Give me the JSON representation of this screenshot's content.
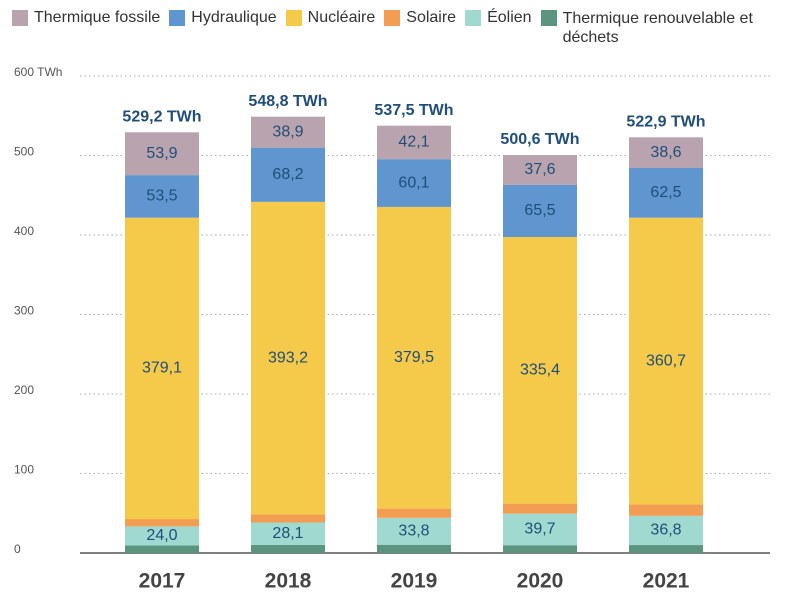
{
  "chart_data": {
    "type": "stacked-bar",
    "categories": [
      "2017",
      "2018",
      "2019",
      "2020",
      "2021"
    ],
    "series": [
      {
        "name": "Thermique renouvelable et déchets",
        "color": "#5b9580",
        "values": [
          9.5,
          10.2,
          10.4,
          9.8,
          10.0
        ]
      },
      {
        "name": "Éolien",
        "color": "#9fd9cf",
        "values": [
          24.0,
          28.1,
          33.8,
          39.7,
          36.8
        ],
        "value_labels": [
          "24,0",
          "28,1",
          "33,8",
          "39,7",
          "36,8"
        ]
      },
      {
        "name": "Solaire",
        "color": "#f29d52",
        "values": [
          9.2,
          10.2,
          11.6,
          12.6,
          14.3
        ]
      },
      {
        "name": "Nucléaire",
        "color": "#f5c94a",
        "values": [
          379.1,
          393.2,
          379.5,
          335.4,
          360.7
        ],
        "value_labels": [
          "379,1",
          "393,2",
          "379,5",
          "335,4",
          "360,7"
        ]
      },
      {
        "name": "Hydraulique",
        "color": "#5f96cf",
        "values": [
          53.5,
          68.2,
          60.1,
          65.5,
          62.5
        ],
        "value_labels": [
          "53,5",
          "68,2",
          "60,1",
          "65,5",
          "62,5"
        ]
      },
      {
        "name": "Thermique fossile",
        "color": "#b9a3ae",
        "values": [
          53.9,
          38.9,
          42.1,
          37.6,
          38.6
        ],
        "value_labels": [
          "53,9",
          "38,9",
          "42,1",
          "37,6",
          "38,6"
        ]
      }
    ],
    "totals": [
      529.2,
      548.8,
      537.5,
      500.6,
      522.9
    ],
    "total_labels": [
      "529,2 TWh",
      "548,8 TWh",
      "537,5 TWh",
      "500,6 TWh",
      "522,9 TWh"
    ],
    "ylim": [
      0,
      600
    ],
    "yticks": [
      0,
      100,
      200,
      300,
      400,
      500,
      {
        "value": 600,
        "label": "600 TWh"
      }
    ],
    "grid": true
  }
}
